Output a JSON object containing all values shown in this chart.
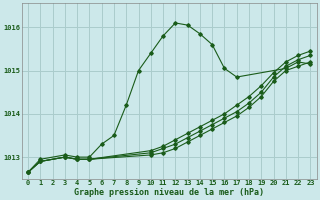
{
  "title": "Graphe pression niveau de la mer (hPa)",
  "background_color": "#cce8ea",
  "grid_color": "#aacccc",
  "line_color": "#1a5c1a",
  "xlim": [
    -0.5,
    23.5
  ],
  "ylim": [
    1012.5,
    1016.55
  ],
  "yticks": [
    1013,
    1014,
    1015,
    1016
  ],
  "xticks": [
    0,
    1,
    2,
    3,
    4,
    5,
    6,
    7,
    8,
    9,
    10,
    11,
    12,
    13,
    14,
    15,
    16,
    17,
    18,
    19,
    20,
    21,
    22,
    23
  ],
  "series": [
    {
      "x": [
        0,
        1,
        3,
        4,
        5,
        6,
        7,
        8,
        9,
        10,
        11,
        12,
        13,
        14,
        15,
        16,
        17,
        21,
        22,
        23
      ],
      "y": [
        1012.65,
        1012.95,
        1013.05,
        1013.0,
        1013.0,
        1013.3,
        1013.5,
        1014.2,
        1015.0,
        1015.4,
        1015.8,
        1016.1,
        1016.05,
        1015.85,
        1015.6,
        1015.05,
        1014.85,
        1015.05,
        1015.2,
        1015.15
      ]
    },
    {
      "x": [
        0,
        1,
        3,
        4,
        5,
        10,
        11,
        12,
        13,
        14,
        15,
        16,
        17,
        18,
        19,
        20,
        21,
        22,
        23
      ],
      "y": [
        1012.65,
        1012.9,
        1013.0,
        1012.95,
        1012.95,
        1013.05,
        1013.1,
        1013.2,
        1013.35,
        1013.5,
        1013.65,
        1013.8,
        1013.95,
        1014.15,
        1014.4,
        1014.75,
        1015.0,
        1015.1,
        1015.2
      ]
    },
    {
      "x": [
        0,
        1,
        3,
        4,
        5,
        10,
        11,
        12,
        13,
        14,
        15,
        16,
        17,
        18,
        19,
        20,
        21,
        22,
        23
      ],
      "y": [
        1012.65,
        1012.9,
        1013.0,
        1012.95,
        1012.95,
        1013.1,
        1013.2,
        1013.3,
        1013.45,
        1013.6,
        1013.75,
        1013.9,
        1014.05,
        1014.25,
        1014.5,
        1014.85,
        1015.1,
        1015.25,
        1015.35
      ]
    },
    {
      "x": [
        0,
        1,
        3,
        4,
        5,
        10,
        11,
        12,
        13,
        14,
        15,
        16,
        17,
        18,
        19,
        20,
        21,
        22,
        23
      ],
      "y": [
        1012.65,
        1012.9,
        1013.0,
        1012.95,
        1012.95,
        1013.15,
        1013.25,
        1013.4,
        1013.55,
        1013.7,
        1013.85,
        1014.0,
        1014.2,
        1014.4,
        1014.65,
        1014.95,
        1015.2,
        1015.35,
        1015.45
      ]
    }
  ]
}
